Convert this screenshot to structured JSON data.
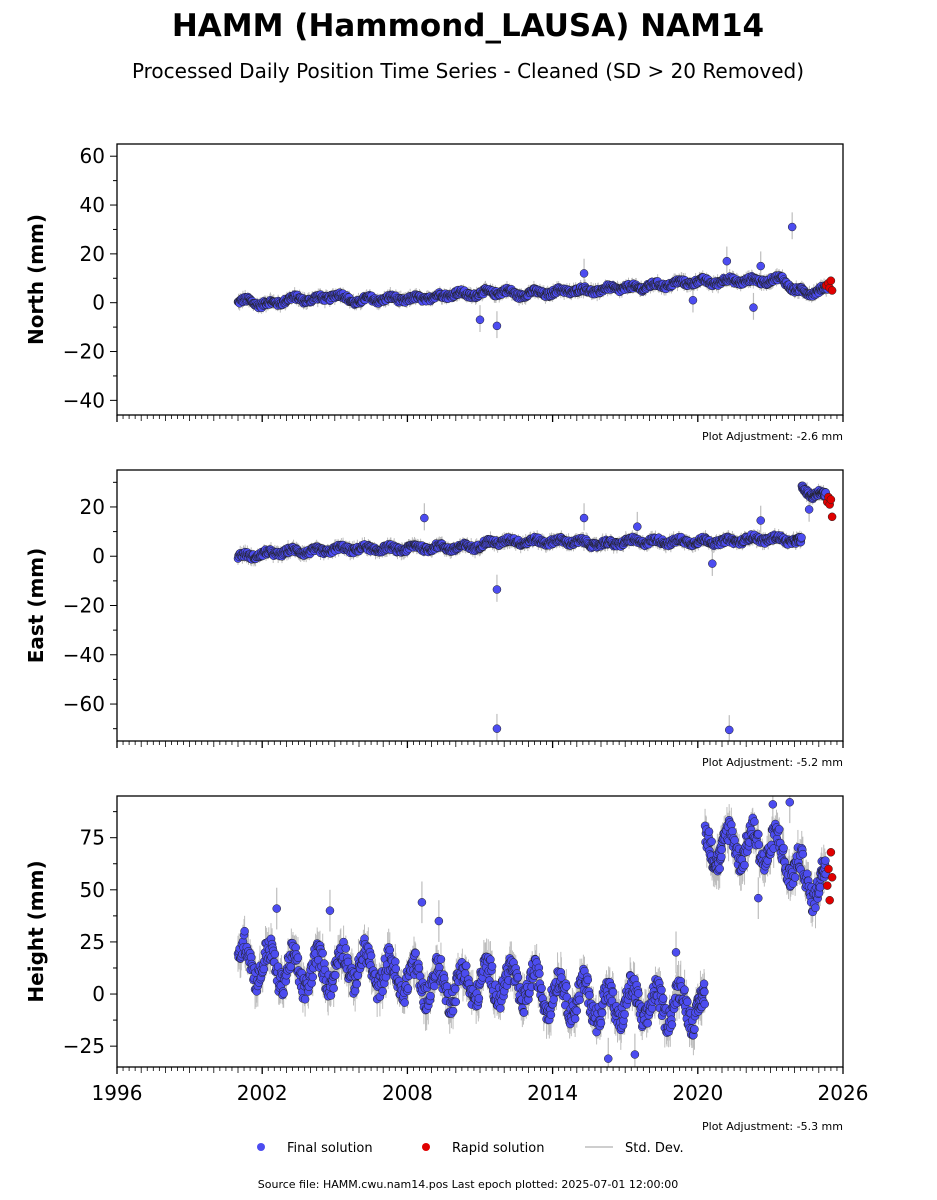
{
  "title": "HAMM (Hammond_LAUSA) NAM14",
  "subtitle": "Processed Daily Position Time Series - Cleaned (SD > 20 Removed)",
  "source_note": "Source file: HAMM.cwu.nam14.pos  Last epoch plotted: 2025-07-01 12:00:00",
  "legend": {
    "final_label": "Final solution",
    "rapid_label": "Rapid solution",
    "std_label": "Std. Dev.",
    "final_color": "#4c4cf0",
    "rapid_color": "#e00000",
    "std_color": "#bdbdbd"
  },
  "chart_data": [
    {
      "type": "scatter",
      "ylabel": "North (mm)",
      "adjustment": "Plot Adjustment: -2.6 mm",
      "xlim": [
        1996,
        2026
      ],
      "ylim": [
        -46,
        65
      ],
      "yticks": [
        -40,
        -20,
        0,
        20,
        40,
        60
      ],
      "ytick_labels": [
        "−40",
        "−20",
        "0",
        "20",
        "40",
        "60"
      ],
      "series": [
        {
          "name": "Final solution",
          "points": [
            [
              2001.0,
              0
            ],
            [
              2001.5,
              1
            ],
            [
              2002.0,
              -1
            ],
            [
              2002.5,
              0
            ],
            [
              2003.0,
              1
            ],
            [
              2003.5,
              2
            ],
            [
              2004.0,
              1
            ],
            [
              2004.5,
              2
            ],
            [
              2005.0,
              3
            ],
            [
              2005.5,
              2
            ],
            [
              2006.0,
              0
            ],
            [
              2006.5,
              2
            ],
            [
              2007.0,
              1
            ],
            [
              2007.5,
              2
            ],
            [
              2008.0,
              1
            ],
            [
              2008.5,
              2
            ],
            [
              2009.0,
              2
            ],
            [
              2009.5,
              3
            ],
            [
              2010.0,
              4
            ],
            [
              2010.5,
              3
            ],
            [
              2011.0,
              4
            ],
            [
              2011.5,
              4
            ],
            [
              2012.0,
              5
            ],
            [
              2012.5,
              3
            ],
            [
              2013.0,
              4
            ],
            [
              2013.5,
              4
            ],
            [
              2014.0,
              4
            ],
            [
              2014.5,
              5
            ],
            [
              2015.0,
              5
            ],
            [
              2015.5,
              5
            ],
            [
              2016.0,
              5
            ],
            [
              2016.5,
              6
            ],
            [
              2017.0,
              6
            ],
            [
              2017.5,
              6
            ],
            [
              2018.0,
              7
            ],
            [
              2018.5,
              7
            ],
            [
              2019.0,
              8
            ],
            [
              2019.5,
              8
            ],
            [
              2020.0,
              9
            ],
            [
              2020.5,
              8
            ],
            [
              2021.0,
              9
            ],
            [
              2021.5,
              9
            ],
            [
              2022.0,
              9
            ],
            [
              2022.5,
              9
            ],
            [
              2023.0,
              9
            ],
            [
              2023.5,
              10
            ],
            [
              2024.0,
              5
            ],
            [
              2024.5,
              4
            ],
            [
              2025.0,
              5
            ],
            [
              2025.4,
              6
            ]
          ],
          "outliers": [
            [
              2011.0,
              -7
            ],
            [
              2011.7,
              -9.5
            ],
            [
              2015.3,
              12
            ],
            [
              2019.8,
              1
            ],
            [
              2021.2,
              17
            ],
            [
              2022.6,
              15
            ],
            [
              2022.3,
              -2
            ],
            [
              2023.9,
              31
            ]
          ]
        },
        {
          "name": "Rapid solution",
          "points": [
            [
              2025.3,
              7
            ],
            [
              2025.4,
              8
            ],
            [
              2025.45,
              6
            ],
            [
              2025.5,
              9
            ],
            [
              2025.55,
              5
            ]
          ]
        }
      ]
    },
    {
      "type": "scatter",
      "ylabel": "East (mm)",
      "adjustment": "Plot Adjustment: -5.2 mm",
      "xlim": [
        1996,
        2026
      ],
      "ylim": [
        -75,
        35
      ],
      "yticks": [
        -60,
        -40,
        -20,
        0,
        20
      ],
      "ytick_labels": [
        "−60",
        "−40",
        "−20",
        "0",
        "20"
      ],
      "series": [
        {
          "name": "Final solution",
          "points": [
            [
              2001.0,
              0
            ],
            [
              2001.5,
              0
            ],
            [
              2002.0,
              1
            ],
            [
              2002.5,
              1
            ],
            [
              2003.0,
              2
            ],
            [
              2003.5,
              2
            ],
            [
              2004.0,
              2
            ],
            [
              2004.5,
              2
            ],
            [
              2005.0,
              3
            ],
            [
              2005.5,
              3
            ],
            [
              2006.0,
              3
            ],
            [
              2006.5,
              3
            ],
            [
              2007.0,
              3
            ],
            [
              2007.5,
              3
            ],
            [
              2008.0,
              3
            ],
            [
              2008.5,
              4
            ],
            [
              2009.0,
              3
            ],
            [
              2009.5,
              4
            ],
            [
              2010.0,
              3
            ],
            [
              2010.5,
              4
            ],
            [
              2011.0,
              4
            ],
            [
              2011.5,
              6
            ],
            [
              2012.0,
              6
            ],
            [
              2012.5,
              6
            ],
            [
              2013.0,
              6
            ],
            [
              2013.5,
              6
            ],
            [
              2014.0,
              6
            ],
            [
              2014.5,
              6
            ],
            [
              2015.0,
              6
            ],
            [
              2015.5,
              5
            ],
            [
              2016.0,
              5
            ],
            [
              2016.5,
              5
            ],
            [
              2017.0,
              6
            ],
            [
              2017.5,
              6
            ],
            [
              2018.0,
              6
            ],
            [
              2018.5,
              6
            ],
            [
              2019.0,
              6
            ],
            [
              2019.5,
              6
            ],
            [
              2020.0,
              6
            ],
            [
              2020.5,
              6
            ],
            [
              2021.0,
              6
            ],
            [
              2021.5,
              6
            ],
            [
              2022.0,
              7
            ],
            [
              2022.5,
              7
            ],
            [
              2023.0,
              7
            ],
            [
              2023.5,
              7
            ],
            [
              2024.0,
              6
            ],
            [
              2024.3,
              27
            ],
            [
              2024.7,
              25
            ],
            [
              2025.0,
              26
            ],
            [
              2025.3,
              24
            ]
          ],
          "outliers": [
            [
              2008.7,
              15.5
            ],
            [
              2011.7,
              -13.5
            ],
            [
              2011.7,
              -70
            ],
            [
              2015.3,
              15.5
            ],
            [
              2017.5,
              12
            ],
            [
              2020.6,
              -3
            ],
            [
              2021.3,
              -70.5
            ],
            [
              2022.6,
              14.5
            ],
            [
              2024.6,
              19
            ]
          ]
        },
        {
          "name": "Rapid solution",
          "points": [
            [
              2025.35,
              22
            ],
            [
              2025.4,
              24
            ],
            [
              2025.45,
              21
            ],
            [
              2025.5,
              23
            ],
            [
              2025.55,
              16
            ]
          ]
        }
      ]
    },
    {
      "type": "scatter",
      "ylabel": "Height (mm)",
      "adjustment": "Plot Adjustment: -5.3 mm",
      "xlim": [
        1996,
        2026
      ],
      "ylim": [
        -35,
        95
      ],
      "yticks": [
        -25,
        0,
        25,
        50,
        75
      ],
      "ytick_labels": [
        "−25",
        "0",
        "25",
        "50",
        "75"
      ],
      "xticks": [
        1996,
        2002,
        2008,
        2014,
        2020,
        2026
      ],
      "xtick_labels": [
        "1996",
        "2002",
        "2008",
        "2014",
        "2020",
        "2026"
      ],
      "series": [
        {
          "name": "Final solution",
          "points": [
            [
              2001.0,
              15
            ],
            [
              2001.5,
              18
            ],
            [
              2002.0,
              12
            ],
            [
              2002.5,
              16
            ],
            [
              2003.0,
              10
            ],
            [
              2003.5,
              12
            ],
            [
              2004.0,
              8
            ],
            [
              2004.5,
              14
            ],
            [
              2005.0,
              10
            ],
            [
              2005.5,
              16
            ],
            [
              2006.0,
              12
            ],
            [
              2006.5,
              14
            ],
            [
              2007.0,
              8
            ],
            [
              2007.5,
              10
            ],
            [
              2008.0,
              6
            ],
            [
              2008.5,
              8
            ],
            [
              2009.0,
              4
            ],
            [
              2009.5,
              6
            ],
            [
              2010.0,
              2
            ],
            [
              2010.5,
              6
            ],
            [
              2011.0,
              4
            ],
            [
              2011.5,
              8
            ],
            [
              2012.0,
              4
            ],
            [
              2012.5,
              6
            ],
            [
              2013.0,
              2
            ],
            [
              2013.5,
              4
            ],
            [
              2014.0,
              -2
            ],
            [
              2014.5,
              2
            ],
            [
              2015.0,
              -4
            ],
            [
              2015.5,
              0
            ],
            [
              2016.0,
              -8
            ],
            [
              2016.5,
              -4
            ],
            [
              2017.0,
              -6
            ],
            [
              2017.5,
              -2
            ],
            [
              2018.0,
              -8
            ],
            [
              2018.5,
              -4
            ],
            [
              2019.0,
              -6
            ],
            [
              2019.5,
              -4
            ],
            [
              2020.0,
              -8
            ],
            [
              2020.3,
              70
            ],
            [
              2020.7,
              72
            ],
            [
              2021.0,
              68
            ],
            [
              2021.5,
              74
            ],
            [
              2022.0,
              70
            ],
            [
              2022.5,
              72
            ],
            [
              2023.0,
              70
            ],
            [
              2023.5,
              68
            ],
            [
              2024.0,
              60
            ],
            [
              2024.5,
              54
            ],
            [
              2025.0,
              52
            ],
            [
              2025.3,
              55
            ]
          ],
          "outliers": [
            [
              2002.6,
              41
            ],
            [
              2004.8,
              40
            ],
            [
              2008.6,
              44
            ],
            [
              2009.3,
              35
            ],
            [
              2016.3,
              -31
            ],
            [
              2017.4,
              -29
            ],
            [
              2019.1,
              20
            ],
            [
              2022.5,
              46
            ],
            [
              2023.1,
              91
            ],
            [
              2023.8,
              92
            ]
          ]
        },
        {
          "name": "Rapid solution",
          "points": [
            [
              2025.35,
              52
            ],
            [
              2025.4,
              60
            ],
            [
              2025.45,
              45
            ],
            [
              2025.5,
              68
            ],
            [
              2025.55,
              56
            ]
          ]
        }
      ]
    }
  ]
}
